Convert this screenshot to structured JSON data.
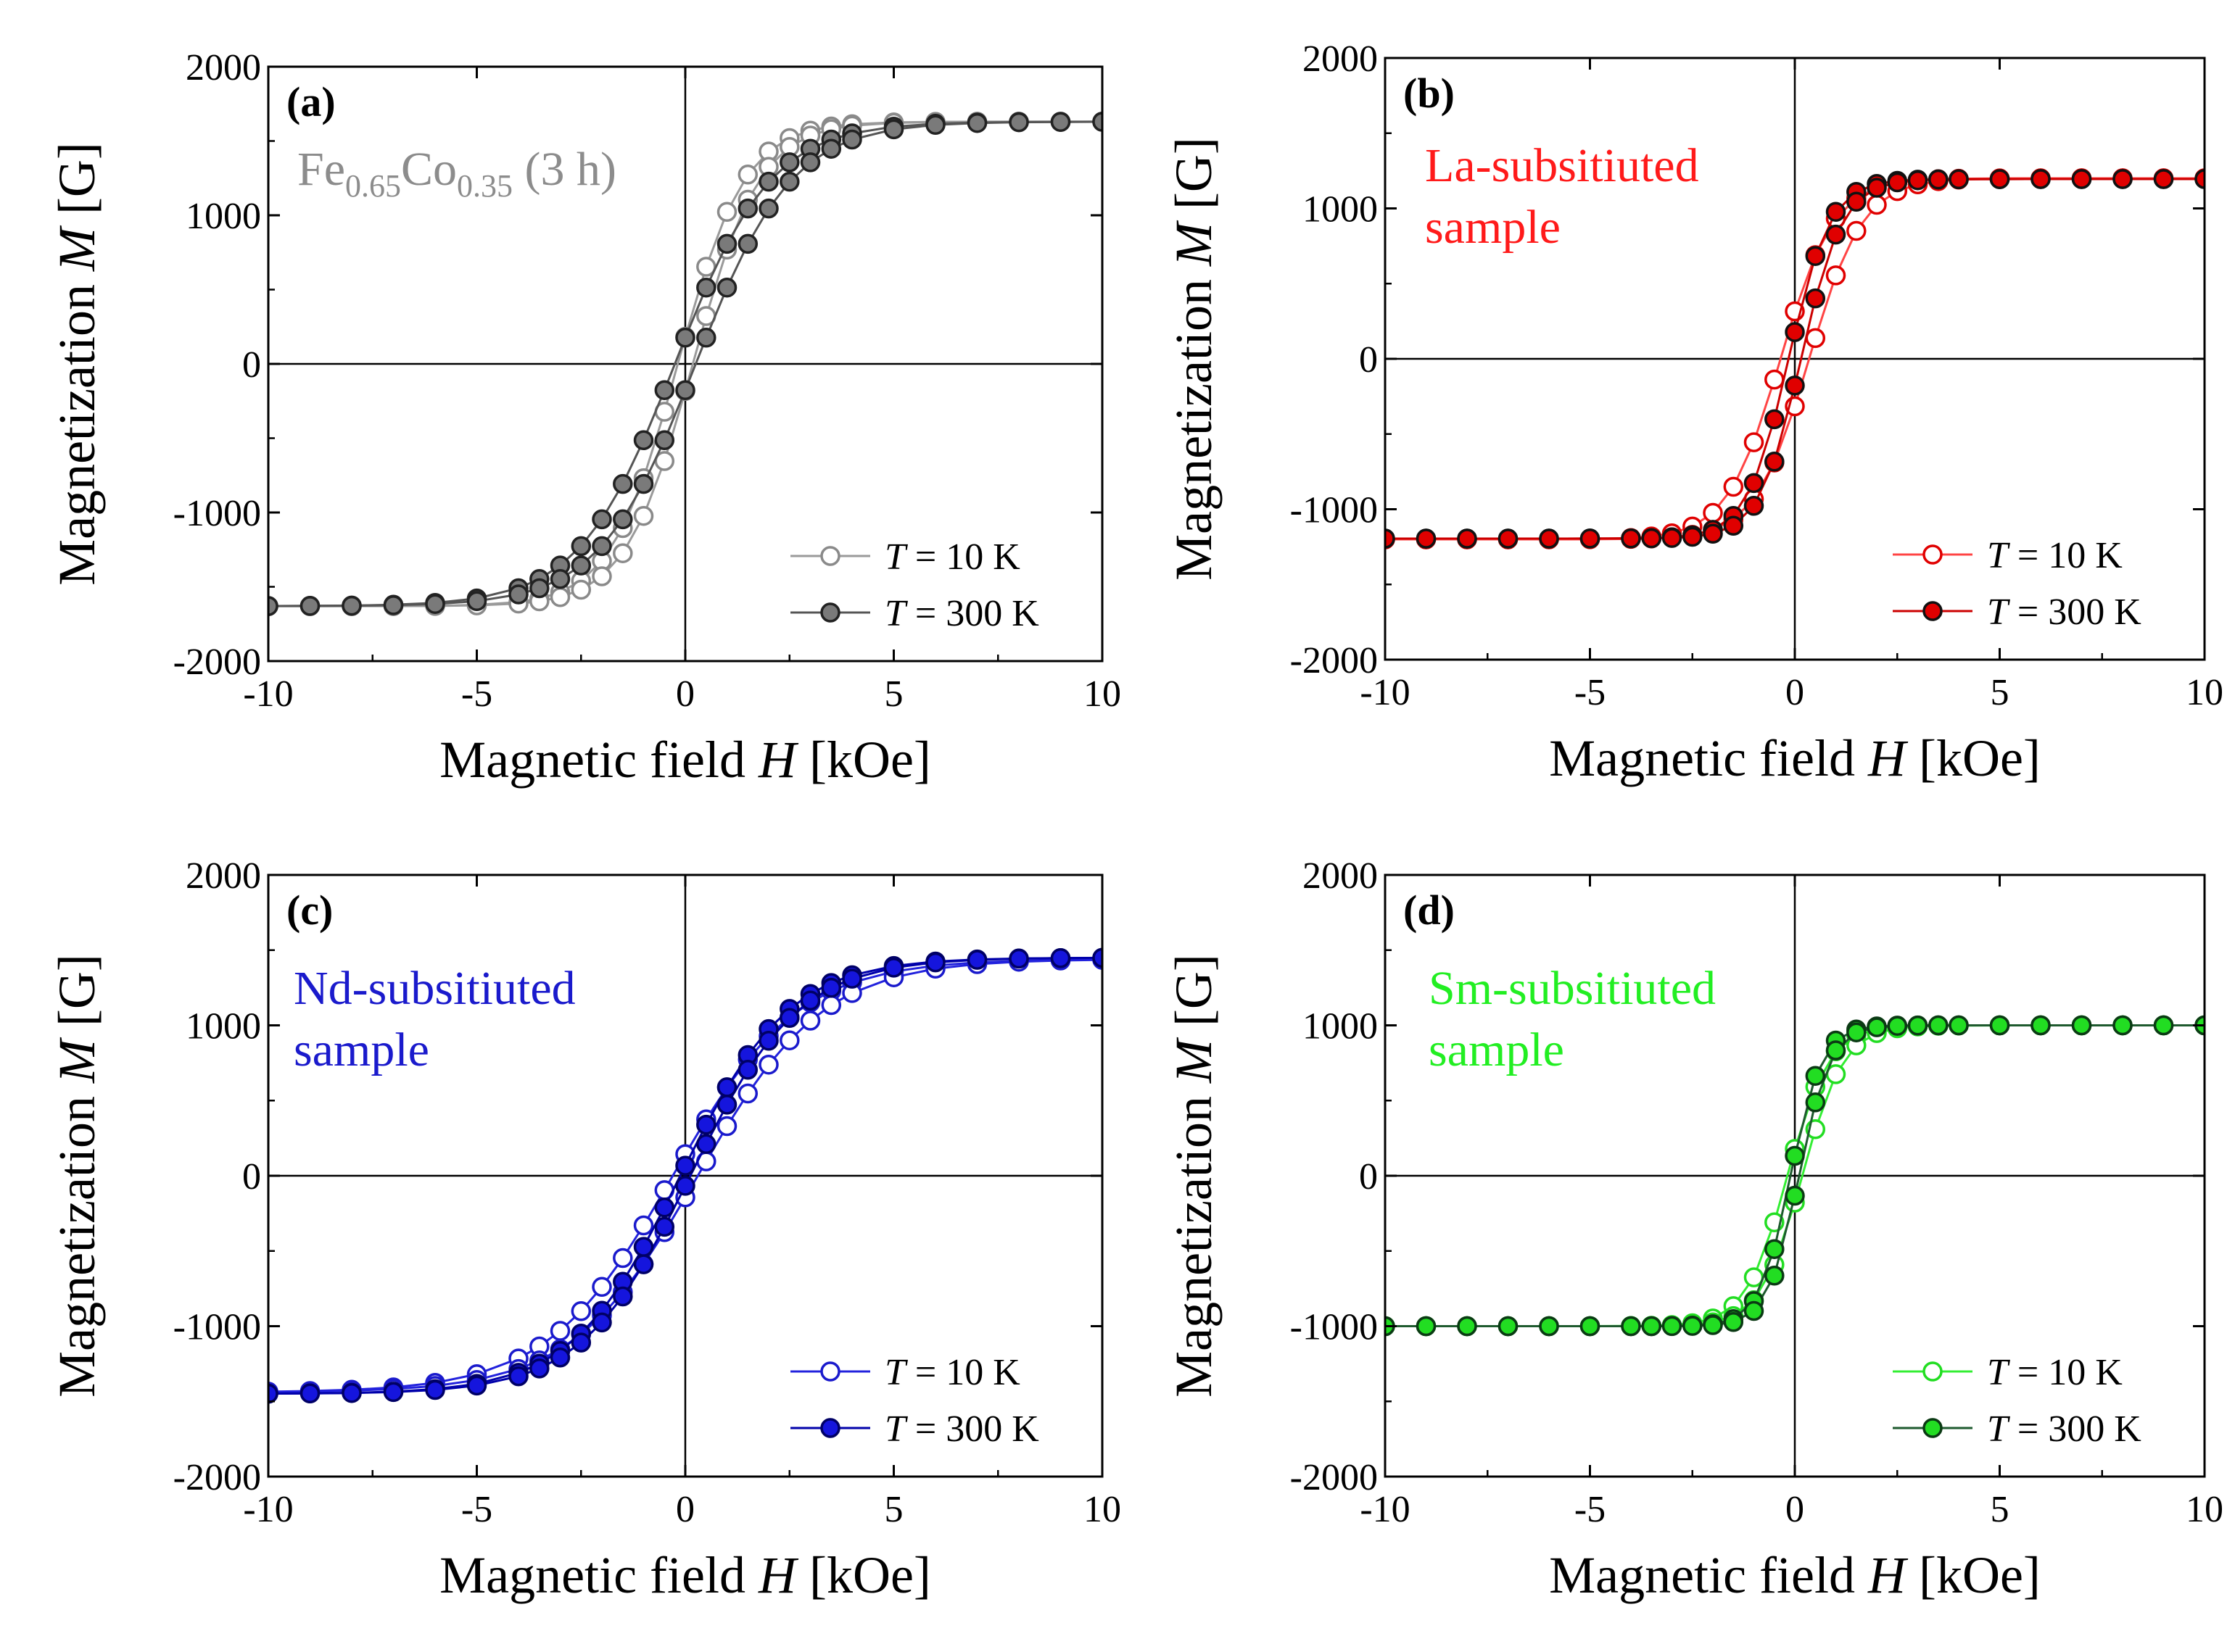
{
  "chart_data": [
    {
      "panel": "(a)",
      "type": "line",
      "xlabel": "Magnetic field ",
      "xlabel_italic": "H",
      "xlabel_unit": " [kOe]",
      "ylabel": "Magnetization ",
      "ylabel_italic": "M",
      "ylabel_unit": " [G]",
      "xlim": [
        -10,
        10
      ],
      "ylim": [
        -2000,
        2000
      ],
      "xticks": [
        "-10",
        "-5",
        "0",
        "5",
        "10"
      ],
      "yticks": [
        "-2000",
        "-1000",
        "0",
        "1000",
        "2000"
      ],
      "annotation": {
        "parts": [
          "Fe",
          "0.65",
          "Co",
          "0.35",
          " (3 h)"
        ],
        "color": "#8c8c8c"
      },
      "legend": [
        {
          "var": "T",
          "text": " = 10 K",
          "marker": "open",
          "line": "#9a9a9a",
          "fill": "none",
          "stroke": "#8a8a8a"
        },
        {
          "var": "T",
          "text": " = 300 K",
          "marker": "filled",
          "line": "#555555",
          "fill": "#7a7a7a",
          "stroke": "#222222"
        }
      ],
      "series": [
        {
          "name": "T = 10 K",
          "ms": 1630,
          "hs": 1.6,
          "hc": 0.18
        },
        {
          "name": "T = 300 K",
          "ms": 1630,
          "hs": 2.3,
          "hc": 0.25
        }
      ]
    },
    {
      "panel": "(b)",
      "type": "line",
      "xlabel": "Magnetic field ",
      "xlabel_italic": "H",
      "xlabel_unit": " [kOe]",
      "ylabel": "Magnetization ",
      "ylabel_italic": "M",
      "ylabel_unit": " [G]",
      "xlim": [
        -10,
        10
      ],
      "ylim": [
        -2000,
        2000
      ],
      "xticks": [
        "-10",
        "-5",
        "0",
        "5",
        "10"
      ],
      "yticks": [
        "-2000",
        "-1000",
        "0",
        "1000",
        "2000"
      ],
      "annotation": {
        "parts": [
          "La-subsitiuted",
          "sample"
        ],
        "color": "#ff1a1a"
      },
      "legend": [
        {
          "var": "T",
          "text": " = 10 K",
          "marker": "open",
          "line": "#ff4444",
          "fill": "#ffffff",
          "stroke": "#e00000"
        },
        {
          "var": "T",
          "text": " = 300 K",
          "marker": "filled",
          "line": "#cc0000",
          "fill": "#e00000",
          "stroke": "#111111"
        }
      ],
      "series": [
        {
          "name": "T = 10 K",
          "ms": 1200,
          "hs": 1.3,
          "hc": 0.35
        },
        {
          "name": "T = 300 K",
          "ms": 1195,
          "hs": 1.0,
          "hc": 0.15
        }
      ]
    },
    {
      "panel": "(c)",
      "type": "line",
      "xlabel": "Magnetic field ",
      "xlabel_italic": "H",
      "xlabel_unit": " [kOe]",
      "ylabel": "Magnetization ",
      "ylabel_italic": "M",
      "ylabel_unit": " [G]",
      "xlim": [
        -10,
        10
      ],
      "ylim": [
        -2000,
        2000
      ],
      "xticks": [
        "-10",
        "-5",
        "0",
        "5",
        "10"
      ],
      "yticks": [
        "-2000",
        "-1000",
        "0",
        "1000",
        "2000"
      ],
      "annotation": {
        "parts": [
          "Nd-subsitiuted",
          "sample"
        ],
        "color": "#1a1acc"
      },
      "legend": [
        {
          "var": "T",
          "text": " = 10 K",
          "marker": "open",
          "line": "#2222dd",
          "fill": "#ffffff",
          "stroke": "#1a1acc"
        },
        {
          "var": "T",
          "text": " = 300 K",
          "marker": "filled",
          "line": "#0000aa",
          "fill": "#1515dd",
          "stroke": "#000066"
        }
      ],
      "series": [
        {
          "name": "T = 10 K",
          "ms": 1440,
          "hs": 3.0,
          "hc": 0.3
        },
        {
          "name": "T = 300 K",
          "ms": 1450,
          "hs": 2.6,
          "hc": 0.12
        }
      ]
    },
    {
      "panel": "(d)",
      "type": "line",
      "xlabel": "Magnetic field ",
      "xlabel_italic": "H",
      "xlabel_unit": " [kOe]",
      "ylabel": "Magnetization ",
      "ylabel_italic": "M",
      "ylabel_unit": " [G]",
      "xlim": [
        -10,
        10
      ],
      "ylim": [
        -2000,
        2000
      ],
      "xticks": [
        "-10",
        "-5",
        "0",
        "5",
        "10"
      ],
      "yticks": [
        "-2000",
        "-1000",
        "0",
        "1000",
        "2000"
      ],
      "annotation": {
        "parts": [
          "Sm-subsitiuted",
          "sample"
        ],
        "color": "#22ee22"
      },
      "legend": [
        {
          "var": "T",
          "text": " = 10 K",
          "marker": "open",
          "line": "#33ee33",
          "fill": "#ffffff",
          "stroke": "#22dd22"
        },
        {
          "var": "T",
          "text": " = 300 K",
          "marker": "filled",
          "line": "#1e5a2e",
          "fill": "#22dd22",
          "stroke": "#0b3a14"
        }
      ],
      "series": [
        {
          "name": "T = 10 K",
          "ms": 1000,
          "hs": 1.0,
          "hc": 0.18
        },
        {
          "name": "T = 300 K",
          "ms": 1000,
          "hs": 0.75,
          "hc": 0.1
        }
      ]
    }
  ]
}
